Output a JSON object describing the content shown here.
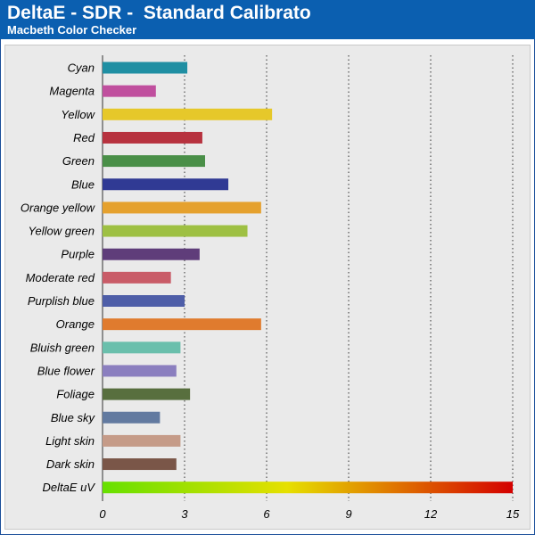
{
  "header": {
    "title": "DeltaE - SDR -  Standard Calibrato",
    "subtitle": "Macbeth Color Checker"
  },
  "colors": {
    "header_bg": "#0b5fb0",
    "plot_bg": "#eaeaea",
    "gradient": [
      "#66e000",
      "#e6e000",
      "#e07a00",
      "#d40000"
    ]
  },
  "chart_data": {
    "type": "bar",
    "orientation": "horizontal",
    "title": "DeltaE - SDR -  Standard Calibrato",
    "subtitle": "Macbeth Color Checker",
    "xlim": [
      0,
      15
    ],
    "xticks": [
      "0",
      "3",
      "6",
      "9",
      "12",
      "15"
    ],
    "grid": "vertical dotted",
    "categories": [
      "Cyan",
      "Magenta",
      "Yellow",
      "Red",
      "Green",
      "Blue",
      "Orange yellow",
      "Yellow green",
      "Purple",
      "Moderate red",
      "Purplish blue",
      "Orange",
      "Bluish green",
      "Blue flower",
      "Foliage",
      "Blue sky",
      "Light skin",
      "Dark skin",
      "DeltaE uV"
    ],
    "values": [
      3.1,
      1.95,
      6.2,
      3.65,
      3.75,
      4.6,
      5.8,
      5.3,
      3.55,
      2.5,
      3.0,
      5.8,
      2.85,
      2.7,
      3.2,
      2.1,
      2.85,
      2.7,
      15
    ],
    "bar_colors": [
      "#1f8fa3",
      "#c04f9e",
      "#e6c82a",
      "#b7323f",
      "#4a8f48",
      "#303a94",
      "#e5a12e",
      "#9ec043",
      "#5f3d7a",
      "#c95c68",
      "#4e5ea8",
      "#e07b2e",
      "#6abfac",
      "#8b7fbf",
      "#586f3e",
      "#627aa0",
      "#c59b88",
      "#7a5648",
      "gradient"
    ]
  }
}
